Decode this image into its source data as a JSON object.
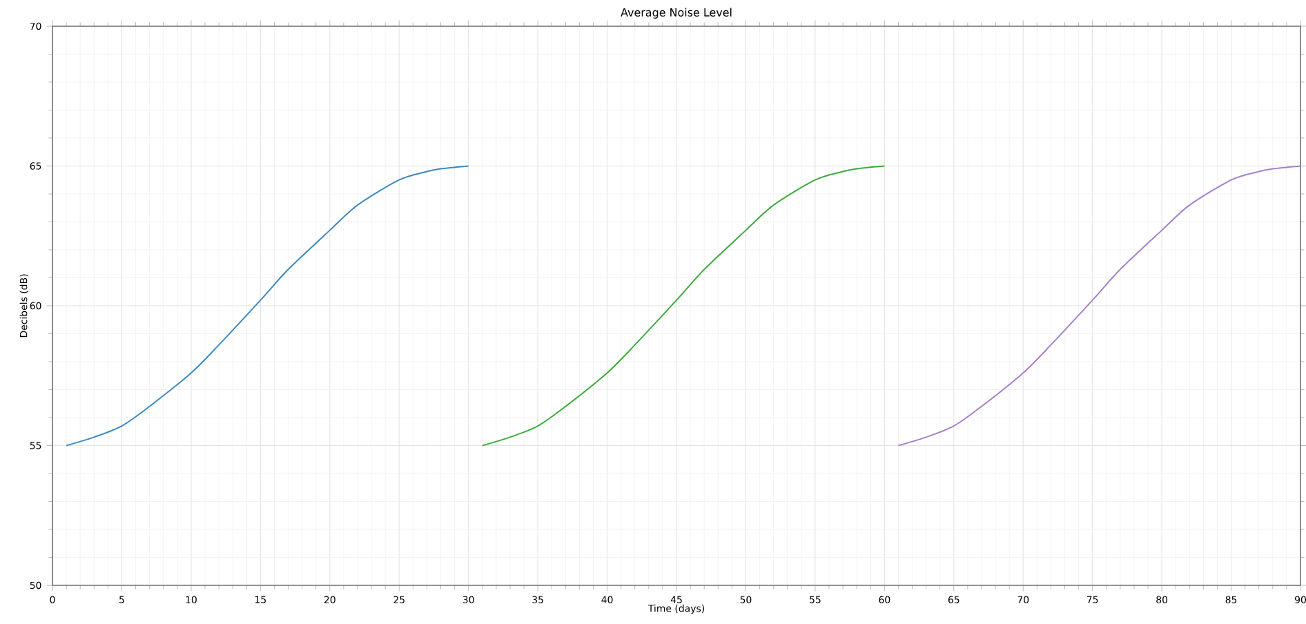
{
  "chart_data": {
    "type": "line",
    "title": "Average Noise Level",
    "xlabel": "Time (days)",
    "ylabel": "Decibels (dB)",
    "series": [
      {
        "color": "#3a88c2",
        "x": [
          1,
          3,
          5,
          7,
          10,
          12,
          15,
          17,
          20,
          22,
          25,
          27,
          28,
          30
        ],
        "values": [
          55.0,
          55.3,
          55.7,
          56.4,
          57.6,
          58.6,
          60.2,
          61.3,
          62.7,
          63.6,
          64.5,
          64.8,
          64.9,
          65.0
        ]
      },
      {
        "color": "#3aaa3a",
        "x": [
          31,
          33,
          35,
          37,
          40,
          42,
          45,
          47,
          50,
          52,
          55,
          57,
          58,
          60
        ],
        "values": [
          55.0,
          55.3,
          55.7,
          56.4,
          57.6,
          58.6,
          60.2,
          61.3,
          62.7,
          63.6,
          64.5,
          64.8,
          64.9,
          65.0
        ]
      },
      {
        "color": "#a57fcc",
        "x": [
          61,
          63,
          65,
          67,
          70,
          72,
          75,
          77,
          80,
          82,
          85,
          87,
          88,
          90
        ],
        "values": [
          55.0,
          55.3,
          55.7,
          56.4,
          57.6,
          58.6,
          60.2,
          61.3,
          62.7,
          63.6,
          64.5,
          64.8,
          64.9,
          65.0
        ]
      }
    ],
    "xlim": [
      0,
      90
    ],
    "xticks": [
      0,
      5,
      10,
      15,
      20,
      25,
      30,
      35,
      40,
      45,
      50,
      55,
      60,
      65,
      70,
      75,
      80,
      85,
      90
    ],
    "ylim": [
      50,
      70
    ],
    "yticks": [
      50,
      55,
      60,
      65,
      70
    ],
    "grid": true,
    "marker": "none",
    "line_style": "solid"
  }
}
